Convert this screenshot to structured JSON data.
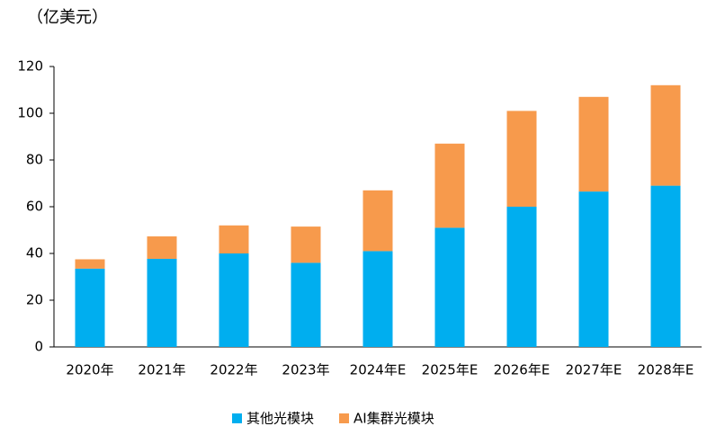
{
  "chart_data": {
    "type": "stacked_bar",
    "unit_label": "（亿美元）",
    "categories": [
      "2020年",
      "2021年",
      "2022年",
      "2023年",
      "2024年E",
      "2025年E",
      "2026年E",
      "2027年E",
      "2028年E"
    ],
    "series": [
      {
        "name": "其他光模块",
        "color": "#00aeef",
        "values": [
          33.5,
          37.7,
          40,
          36,
          41,
          51,
          60,
          66.5,
          69
        ]
      },
      {
        "name": "AI集群光模块",
        "color": "#f79a4c",
        "values": [
          4,
          9.6,
          12,
          15.5,
          26,
          36,
          41,
          40.5,
          43
        ]
      }
    ],
    "ylim": [
      0,
      120
    ],
    "yticks": [
      0,
      20,
      40,
      60,
      80,
      100,
      120
    ],
    "grid": false
  }
}
